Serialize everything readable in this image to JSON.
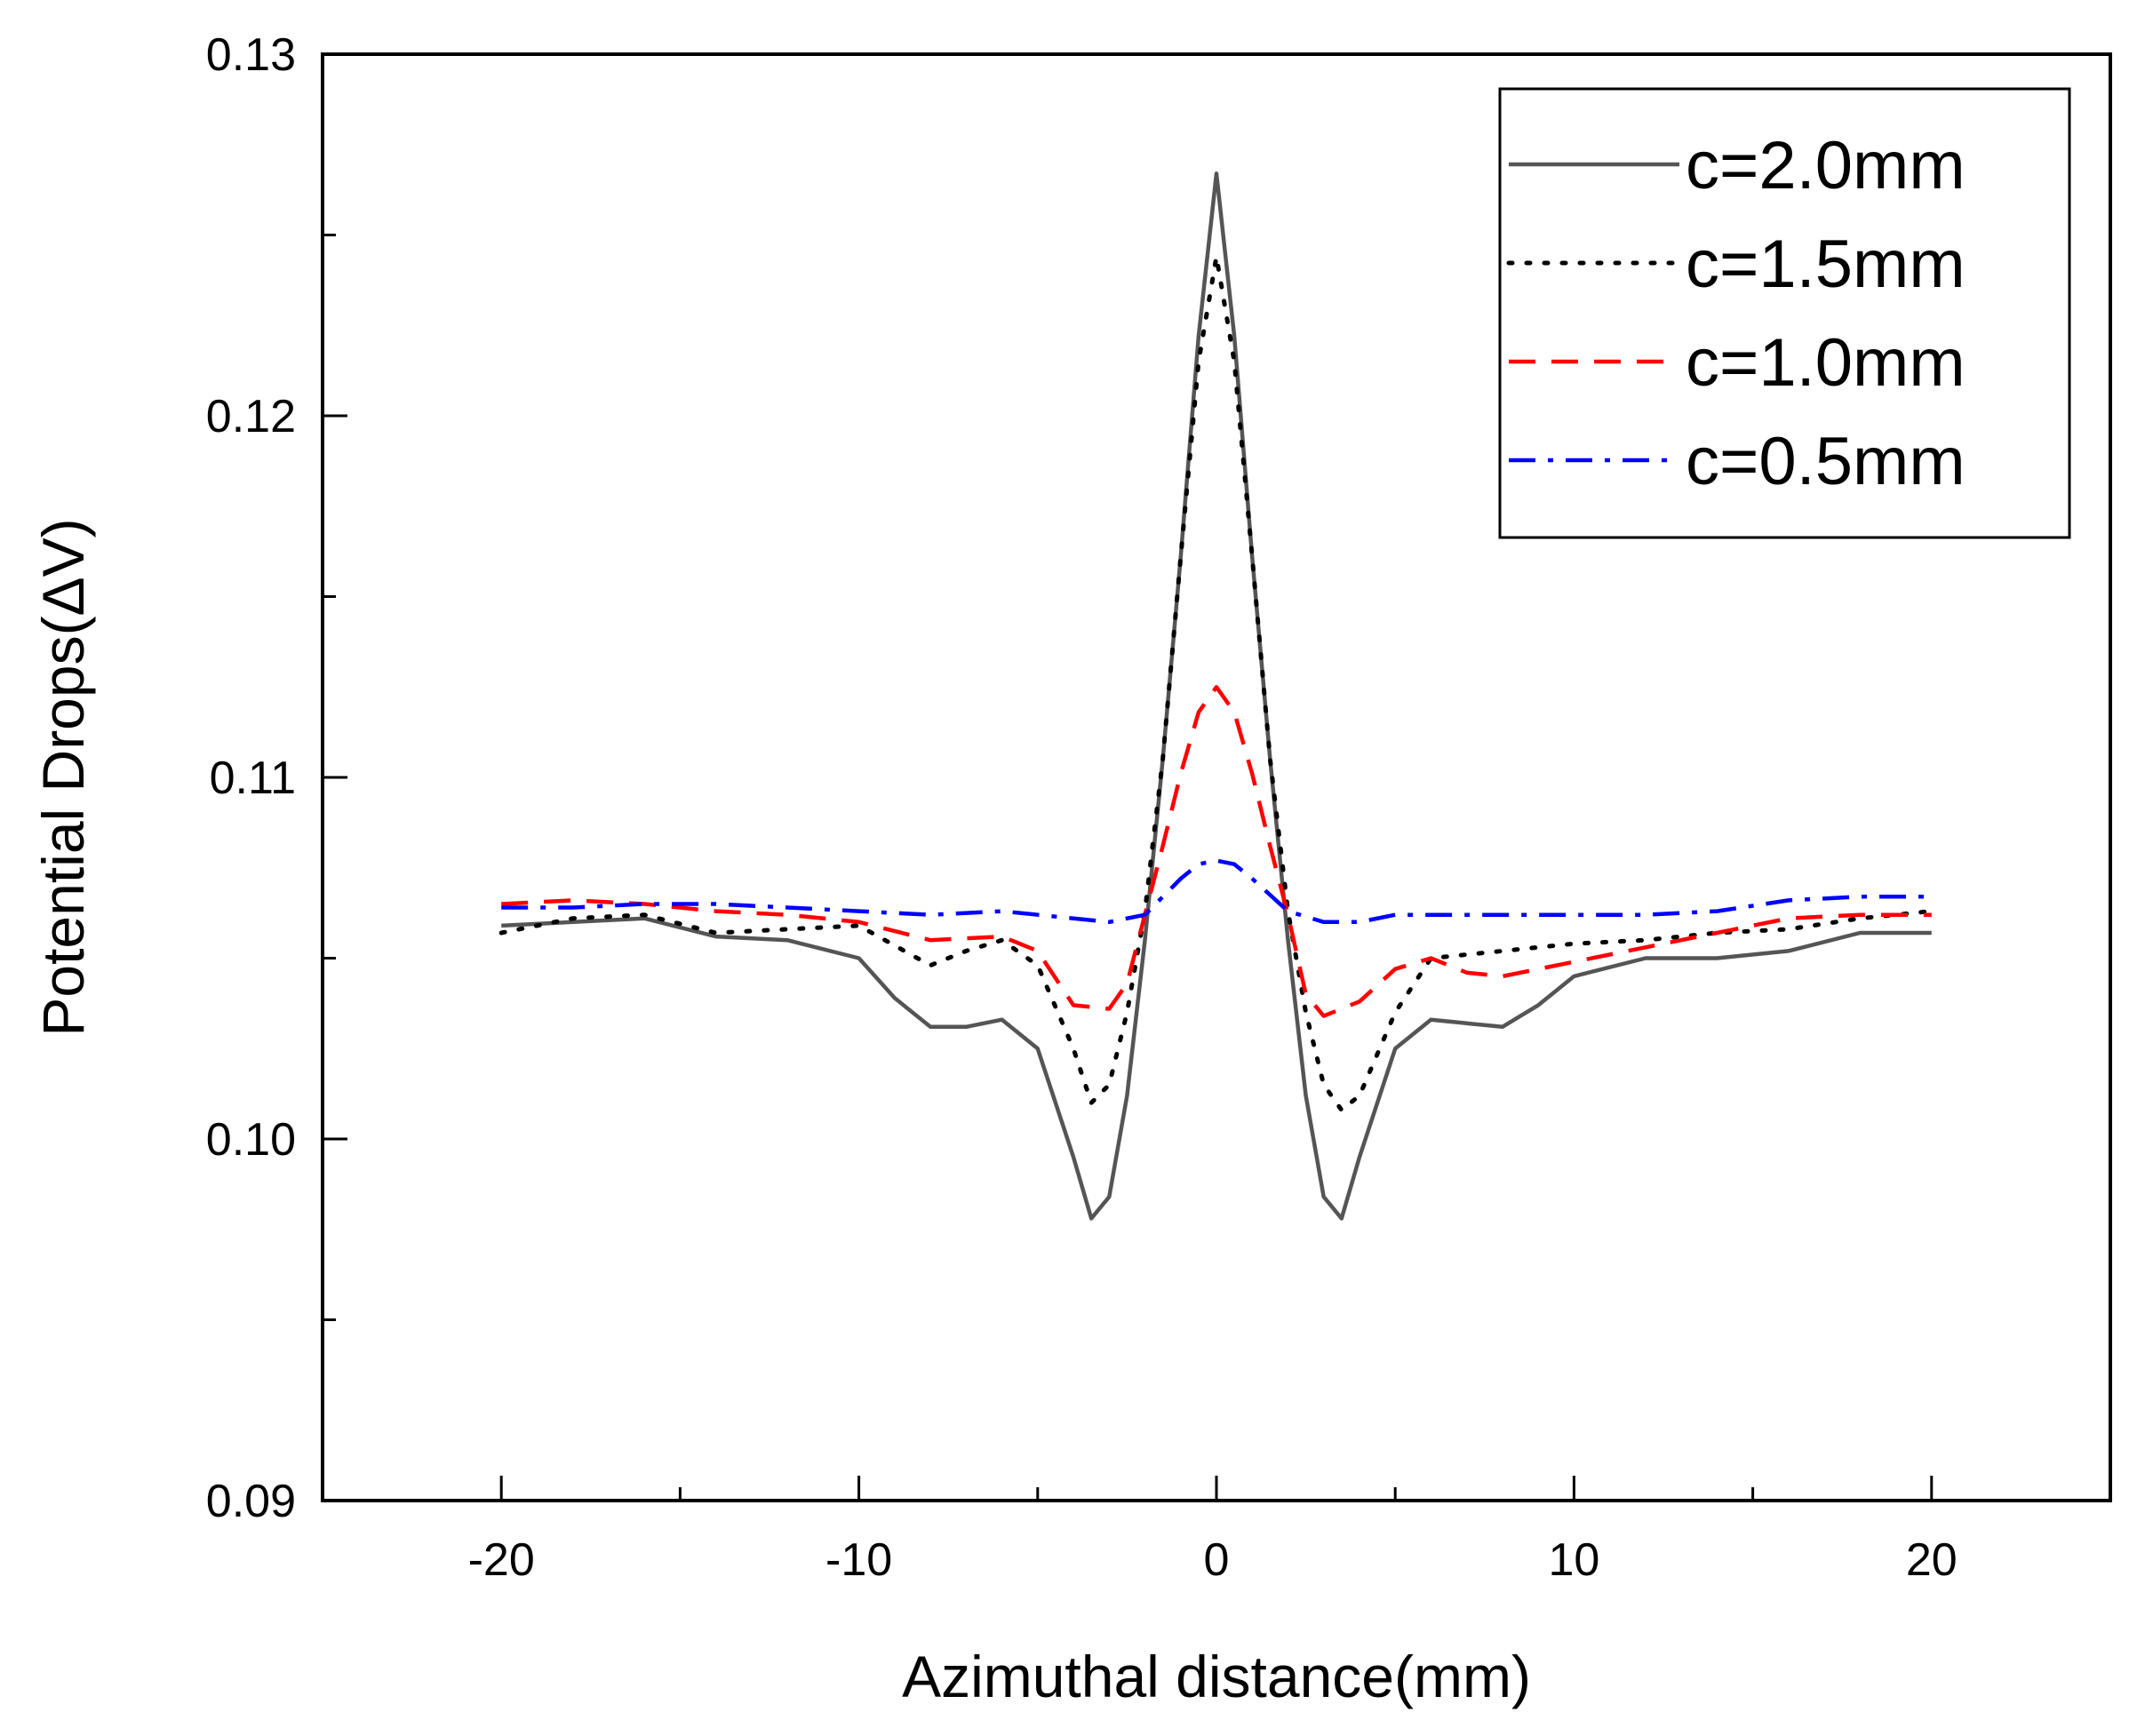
{
  "chart_data": {
    "type": "line",
    "title": "",
    "xlabel": "Azimuthal distance(mm)",
    "ylabel": "Potential Drops(ΔV)",
    "xlim": [
      -25,
      25
    ],
    "ylim": [
      0.09,
      0.13
    ],
    "xticks": [
      -20,
      -10,
      0,
      10,
      20
    ],
    "xtick_labels": [
      "-20",
      "-10",
      "0",
      "10",
      "20"
    ],
    "yticks": [
      0.09,
      0.1,
      0.11,
      0.12,
      0.13
    ],
    "ytick_labels": [
      "0.09",
      "0.10",
      "0.11",
      "0.12",
      "0.13"
    ],
    "legend_position": "top-right",
    "grid": false,
    "series": [
      {
        "name": "c=2.0mm",
        "color": "#555555",
        "dash": "solid",
        "x": [
          -20,
          -18,
          -16,
          -14,
          -12,
          -10,
          -9,
          -8,
          -7,
          -6,
          -5,
          -4,
          -3.5,
          -3,
          -2.5,
          -2,
          -1.5,
          -1,
          -0.5,
          0,
          0.5,
          1,
          1.5,
          2,
          2.5,
          3,
          3.5,
          4,
          5,
          6,
          7,
          8,
          9,
          10,
          12,
          14,
          16,
          18,
          20
        ],
        "y": [
          0.1059,
          0.106,
          0.1061,
          0.1056,
          0.1055,
          0.105,
          0.1039,
          0.1031,
          0.1031,
          0.1033,
          0.1025,
          0.0995,
          0.0978,
          0.0984,
          0.1012,
          0.1055,
          0.1105,
          0.1161,
          0.1222,
          0.1267,
          0.1222,
          0.1161,
          0.1105,
          0.1055,
          0.1012,
          0.0984,
          0.0978,
          0.0995,
          0.1025,
          0.1033,
          0.1032,
          0.1031,
          0.1037,
          0.1045,
          0.105,
          0.105,
          0.1052,
          0.1057,
          0.1057
        ]
      },
      {
        "name": "c=1.5mm",
        "color": "#000000",
        "dash": "dotted",
        "x": [
          -20,
          -18,
          -16,
          -14,
          -12,
          -10,
          -8,
          -7,
          -6,
          -5,
          -4,
          -3.5,
          -3,
          -2.5,
          -2,
          -1.5,
          -1,
          -0.5,
          0,
          0.5,
          1,
          1.5,
          2,
          2.5,
          3,
          3.5,
          4,
          5,
          6,
          8,
          10,
          12,
          14,
          16,
          18,
          20
        ],
        "y": [
          0.1057,
          0.1061,
          0.1062,
          0.1057,
          0.1058,
          0.1059,
          0.1048,
          0.1052,
          0.1055,
          0.1048,
          0.1025,
          0.101,
          0.1015,
          0.1035,
          0.1063,
          0.1105,
          0.1161,
          0.1215,
          0.1244,
          0.1215,
          0.1161,
          0.1105,
          0.1063,
          0.1035,
          0.1015,
          0.1008,
          0.1012,
          0.1035,
          0.105,
          0.1052,
          0.1054,
          0.1055,
          0.1057,
          0.1058,
          0.1061,
          0.1063
        ]
      },
      {
        "name": "c=1.0mm",
        "color": "#ff0000",
        "dash": "dashed",
        "x": [
          -20,
          -18,
          -16,
          -14,
          -12,
          -10,
          -8,
          -6,
          -5,
          -4,
          -3,
          -2.5,
          -2,
          -1.5,
          -1,
          -0.5,
          0,
          0.5,
          1,
          1.5,
          2,
          2.5,
          3,
          4,
          5,
          6,
          7,
          8,
          10,
          12,
          14,
          16,
          18,
          20
        ],
        "y": [
          0.1065,
          0.1066,
          0.1065,
          0.1063,
          0.1062,
          0.106,
          0.1055,
          0.1056,
          0.1052,
          0.1037,
          0.1036,
          0.1043,
          0.1062,
          0.1081,
          0.1101,
          0.1118,
          0.1125,
          0.1118,
          0.1101,
          0.1081,
          0.1062,
          0.104,
          0.1034,
          0.1038,
          0.1047,
          0.105,
          0.1046,
          0.1045,
          0.1049,
          0.1053,
          0.1057,
          0.1061,
          0.1062,
          0.1062
        ]
      },
      {
        "name": "c=0.5mm",
        "color": "#0000ff",
        "dash": "dashdot",
        "x": [
          -20,
          -18,
          -16,
          -14,
          -12,
          -10,
          -8,
          -6,
          -4,
          -3,
          -2,
          -1,
          -0.5,
          0,
          0.5,
          1,
          2,
          3,
          4,
          5,
          6,
          8,
          10,
          12,
          14,
          16,
          18,
          20
        ],
        "y": [
          0.1064,
          0.1064,
          0.1065,
          0.1065,
          0.1064,
          0.1063,
          0.1062,
          0.1063,
          0.1061,
          0.106,
          0.1062,
          0.1072,
          0.1076,
          0.1077,
          0.1076,
          0.1072,
          0.1063,
          0.106,
          0.106,
          0.1062,
          0.1062,
          0.1062,
          0.1062,
          0.1062,
          0.1063,
          0.1066,
          0.1067,
          0.1067
        ]
      }
    ]
  }
}
